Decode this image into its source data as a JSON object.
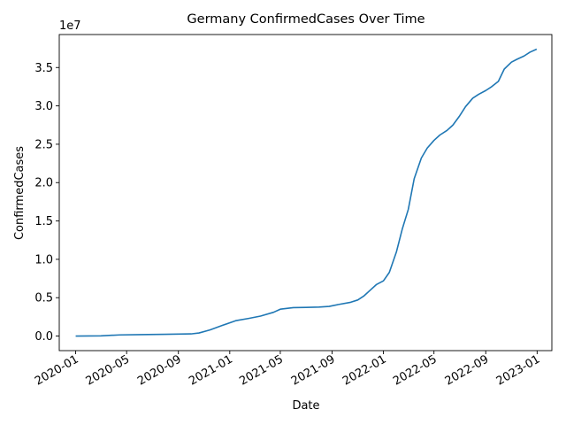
{
  "chart_data": {
    "type": "line",
    "title": "Germany  ConfirmedCases Over Time",
    "xlabel": "Date",
    "ylabel": "ConfirmedCases",
    "y_offset_text": "1e7",
    "xlim": [
      "2019-11-23",
      "2023-02-05"
    ],
    "ylim": [
      -1900000,
      39300000
    ],
    "x_ticks": [
      {
        "value": "2020-01-01",
        "label": "2020-01"
      },
      {
        "value": "2020-05-01",
        "label": "2020-05"
      },
      {
        "value": "2020-09-01",
        "label": "2020-09"
      },
      {
        "value": "2021-01-01",
        "label": "2021-01"
      },
      {
        "value": "2021-05-01",
        "label": "2021-05"
      },
      {
        "value": "2021-09-01",
        "label": "2021-09"
      },
      {
        "value": "2022-01-01",
        "label": "2022-01"
      },
      {
        "value": "2022-05-01",
        "label": "2022-05"
      },
      {
        "value": "2022-09-01",
        "label": "2022-09"
      },
      {
        "value": "2023-01-01",
        "label": "2023-01"
      }
    ],
    "y_ticks": [
      {
        "value": 0,
        "label": "0.0"
      },
      {
        "value": 5000000,
        "label": "0.5"
      },
      {
        "value": 10000000,
        "label": "1.0"
      },
      {
        "value": 15000000,
        "label": "1.5"
      },
      {
        "value": 20000000,
        "label": "2.0"
      },
      {
        "value": 25000000,
        "label": "2.5"
      },
      {
        "value": 30000000,
        "label": "3.0"
      },
      {
        "value": 35000000,
        "label": "3.5"
      }
    ],
    "grid": false,
    "line_color": "#1f77b4",
    "series": [
      {
        "x": [
          "2020-01-01",
          "2020-03-01",
          "2020-04-15",
          "2020-06-01",
          "2020-08-01",
          "2020-10-01",
          "2020-10-20",
          "2020-11-15",
          "2020-12-15",
          "2021-01-15",
          "2021-02-15",
          "2021-03-15",
          "2021-04-15",
          "2021-05-01",
          "2021-06-01",
          "2021-07-01",
          "2021-08-01",
          "2021-08-25",
          "2021-09-15",
          "2021-10-15",
          "2021-11-01",
          "2021-11-15",
          "2021-12-01",
          "2021-12-15",
          "2022-01-01",
          "2022-01-15",
          "2022-02-01",
          "2022-02-15",
          "2022-03-01",
          "2022-03-15",
          "2022-04-01",
          "2022-04-15",
          "2022-05-01",
          "2022-05-15",
          "2022-06-01",
          "2022-06-15",
          "2022-07-01",
          "2022-07-15",
          "2022-08-01",
          "2022-08-15",
          "2022-09-01",
          "2022-09-15",
          "2022-10-01",
          "2022-10-15",
          "2022-11-01",
          "2022-11-15",
          "2022-12-01",
          "2022-12-15",
          "2022-12-31"
        ],
        "y": [
          0,
          30000,
          150000,
          190000,
          230000,
          280000,
          400000,
          800000,
          1400000,
          2000000,
          2300000,
          2600000,
          3100000,
          3500000,
          3700000,
          3730000,
          3780000,
          3860000,
          4100000,
          4400000,
          4700000,
          5200000,
          6000000,
          6700000,
          7200000,
          8300000,
          11000000,
          14000000,
          16500000,
          20500000,
          23200000,
          24500000,
          25500000,
          26200000,
          26800000,
          27500000,
          28700000,
          29900000,
          31000000,
          31500000,
          32000000,
          32500000,
          33200000,
          34800000,
          35700000,
          36100000,
          36500000,
          37000000,
          37400000
        ]
      }
    ]
  }
}
